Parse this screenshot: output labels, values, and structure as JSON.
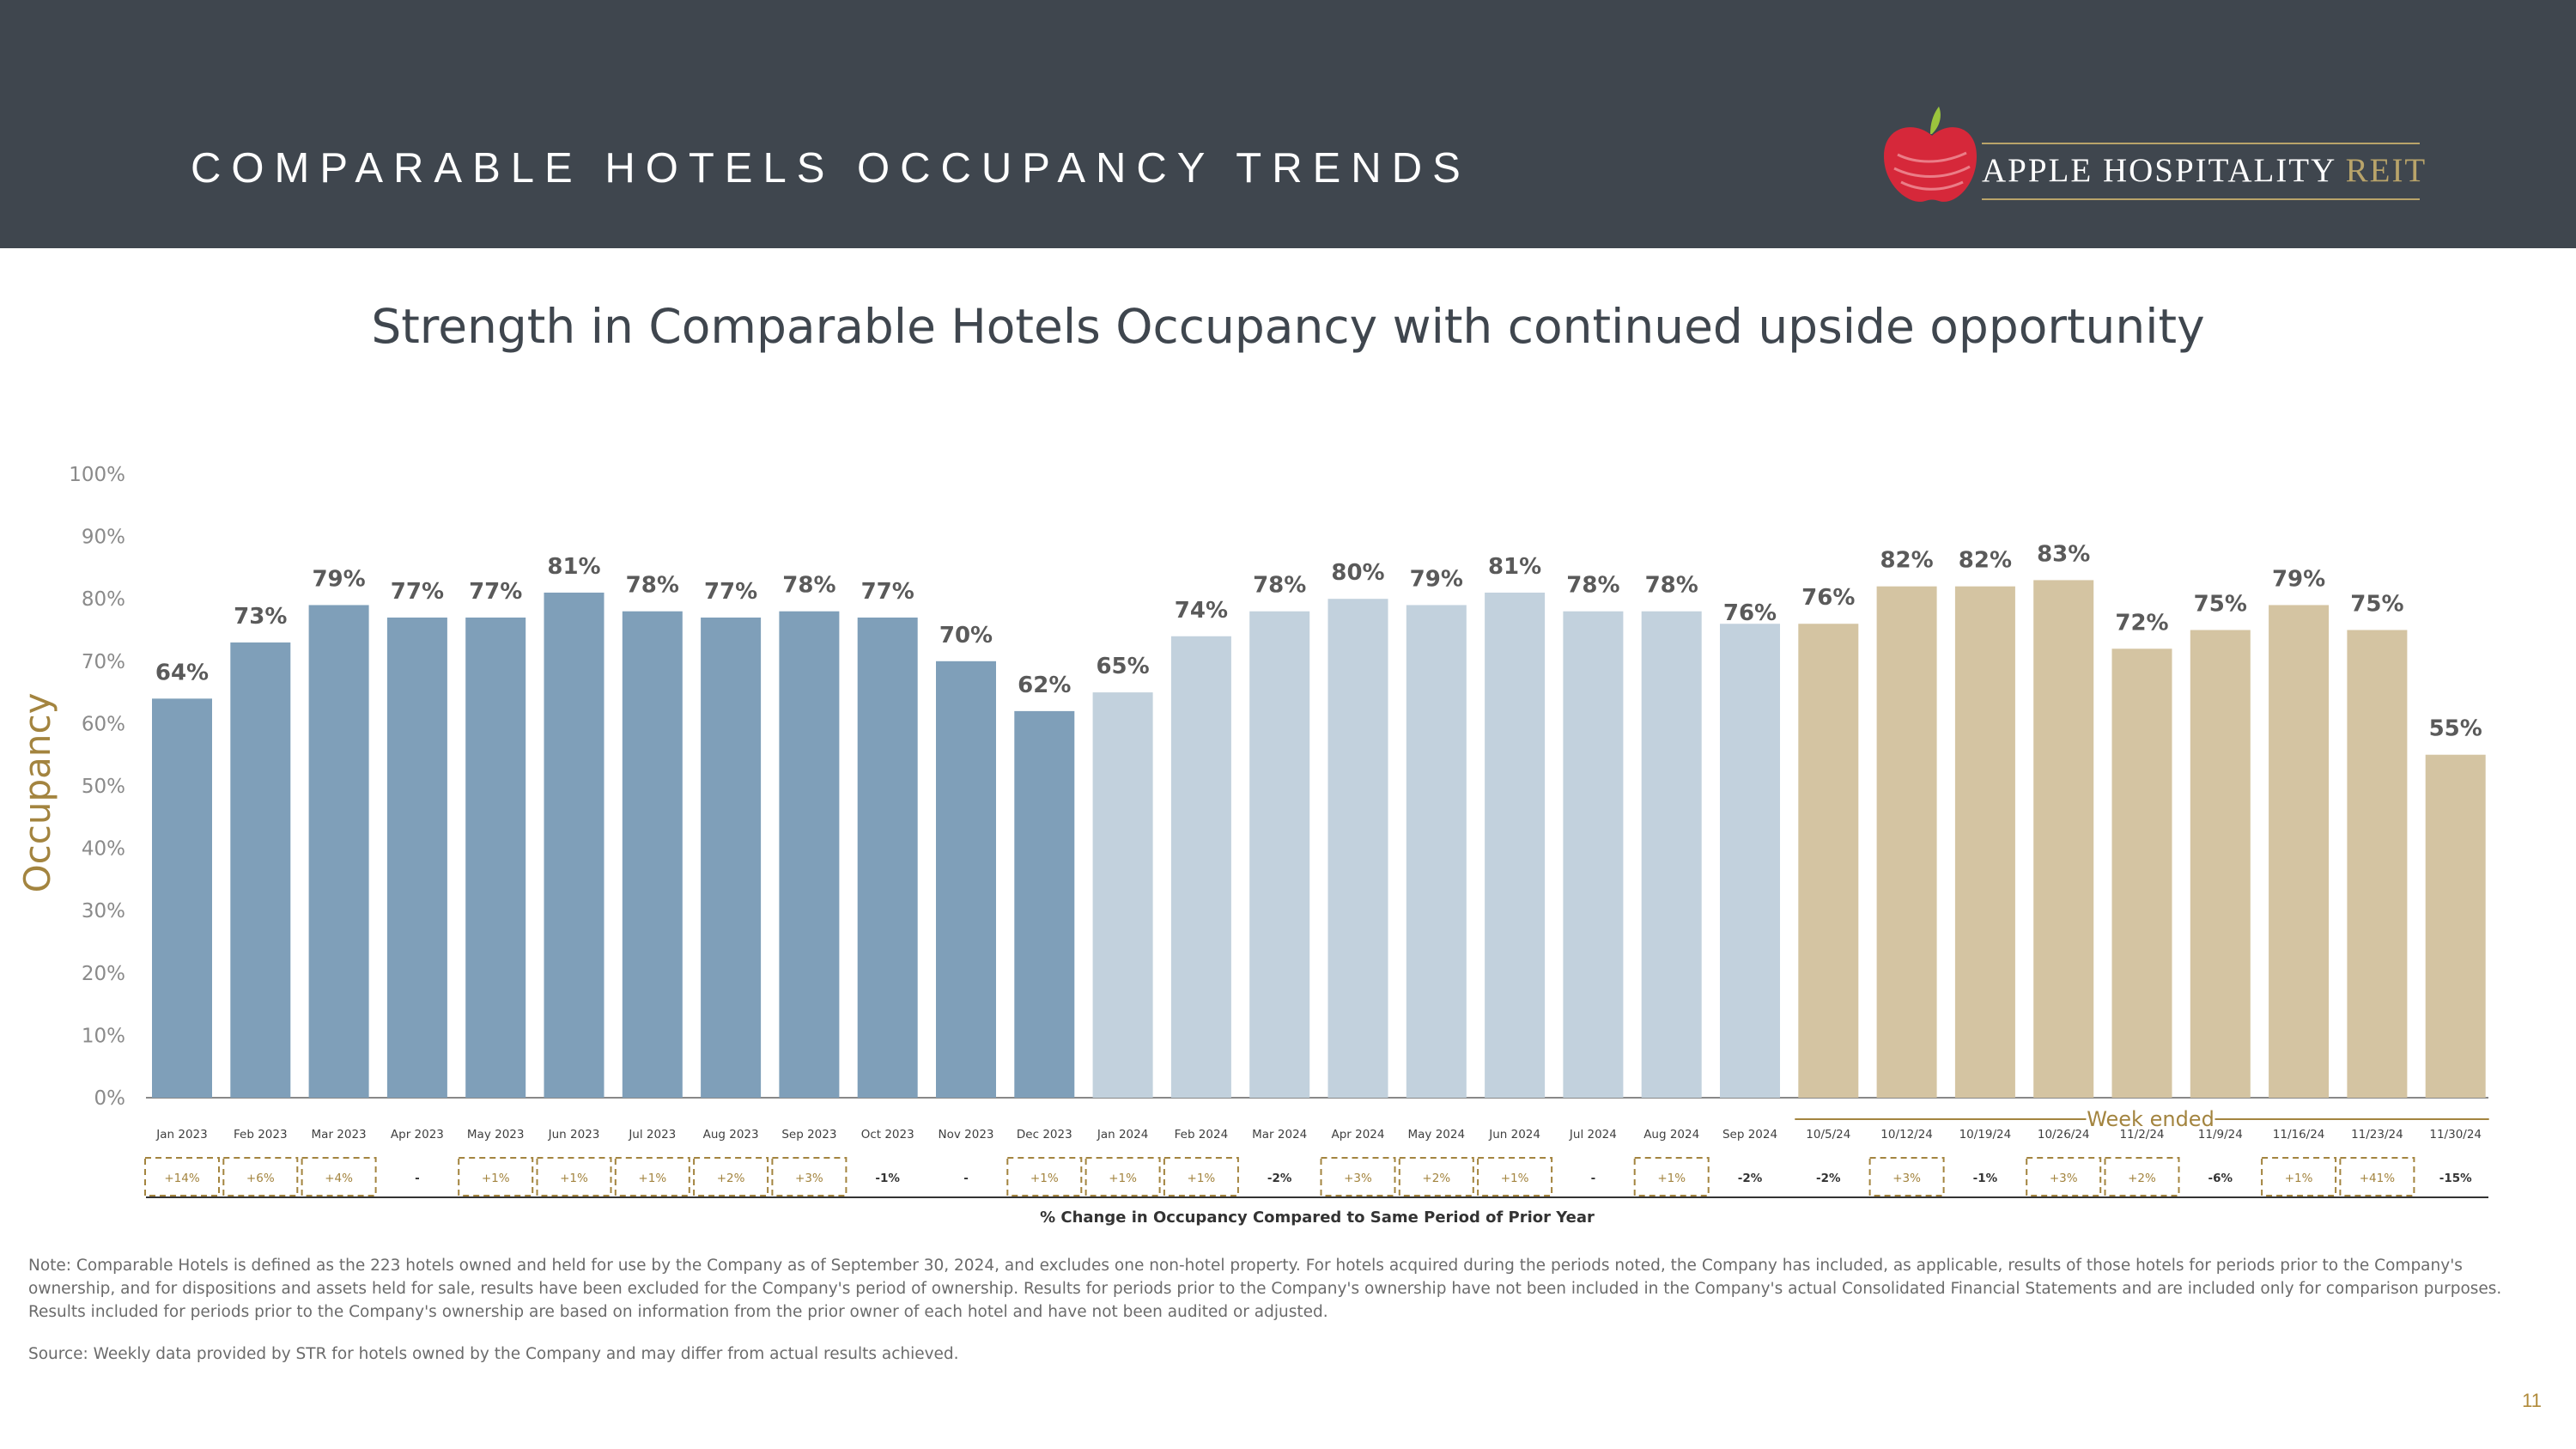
{
  "header": {
    "title": "COMPARABLE HOTELS OCCUPANCY TRENDS",
    "logo": {
      "name": "APPLE HOSPITALITY",
      "accent": "REIT",
      "icon": "apple-logo-icon"
    }
  },
  "subtitle": "Strength in Comparable Hotels Occupancy with continued upside opportunity",
  "chart_data": {
    "type": "bar",
    "ylabel": "Occupancy",
    "ylim": [
      0,
      100
    ],
    "yticks": [
      "0%",
      "10%",
      "20%",
      "30%",
      "40%",
      "50%",
      "60%",
      "70%",
      "80%",
      "90%",
      "100%"
    ],
    "categories": [
      "Jan 2023",
      "Feb 2023",
      "Mar 2023",
      "Apr 2023",
      "May 2023",
      "Jun 2023",
      "Jul 2023",
      "Aug 2023",
      "Sep 2023",
      "Oct 2023",
      "Nov 2023",
      "Dec 2023",
      "Jan 2024",
      "Feb 2024",
      "Mar 2024",
      "Apr 2024",
      "May 2024",
      "Jun 2024",
      "Jul 2024",
      "Aug 2024",
      "Sep 2024",
      "10/5/24",
      "10/12/24",
      "10/19/24",
      "10/26/24",
      "11/2/24",
      "11/9/24",
      "11/16/24",
      "11/23/24",
      "11/30/24"
    ],
    "values": [
      64,
      73,
      79,
      77,
      77,
      81,
      78,
      77,
      78,
      77,
      70,
      62,
      65,
      74,
      78,
      80,
      79,
      81,
      78,
      78,
      76,
      76,
      82,
      82,
      83,
      72,
      75,
      79,
      75,
      55
    ],
    "value_labels": [
      "64%",
      "73%",
      "79%",
      "77%",
      "77%",
      "81%",
      "78%",
      "77%",
      "78%",
      "77%",
      "70%",
      "62%",
      "65%",
      "74%",
      "78%",
      "80%",
      "79%",
      "81%",
      "78%",
      "78%",
      "76%",
      "76%",
      "82%",
      "82%",
      "83%",
      "72%",
      "75%",
      "79%",
      "75%",
      "55%"
    ],
    "groups": [
      {
        "start": 0,
        "end": 11,
        "color": "#7f9fb9"
      },
      {
        "start": 12,
        "end": 20,
        "color": "#c2d1dd"
      },
      {
        "start": 21,
        "end": 29,
        "color": "#d4c4a2"
      }
    ],
    "group_label": "Week ended",
    "changes": [
      "+14%",
      "+6%",
      "+4%",
      "-",
      "+1%",
      "+1%",
      "+1%",
      "+2%",
      "+3%",
      "-1%",
      "-",
      "+1%",
      "+1%",
      "+1%",
      "-2%",
      "+3%",
      "+2%",
      "+1%",
      "-",
      "+1%",
      "-2%",
      "-2%",
      "+3%",
      "-1%",
      "+3%",
      "+2%",
      "-6%",
      "+1%",
      "+41%",
      "-15%"
    ],
    "changes_caption": "% Change in Occupancy Compared to Same Period of Prior Year"
  },
  "note": "Note: Comparable Hotels is defined as the 223 hotels owned and held for use by the Company as of September 30, 2024, and excludes one non-hotel property. For hotels acquired during the periods noted, the Company has included, as applicable, results of those hotels for periods prior to the Company's ownership, and for dispositions and assets held for sale, results have been excluded for the Company's period of ownership. Results for periods prior to the Company's ownership have not been included in the Company's actual Consolidated Financial Statements and are included only for comparison purposes. Results included for periods prior to the Company's ownership are based on information from the prior owner of each hotel and have not been audited or adjusted.",
  "source": "Source:  Weekly data provided by STR for hotels owned by the Company and may differ from actual results achieved.",
  "page_number": "11"
}
